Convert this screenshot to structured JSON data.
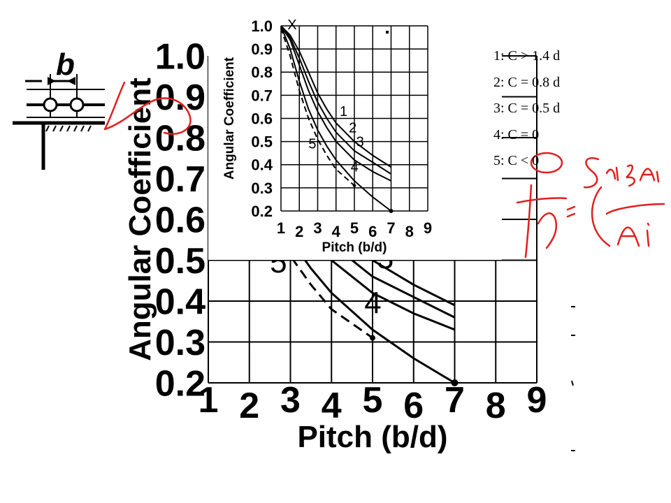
{
  "figure_label": "b",
  "chart_data": [
    {
      "type": "line",
      "title": "",
      "xlabel": "Pitch (b/d)",
      "ylabel": "Angular Coefficient",
      "x_ticks": [
        1,
        2,
        3,
        4,
        5,
        6,
        7,
        8,
        9
      ],
      "y_ticks": [
        0.2,
        0.3,
        0.4,
        0.5,
        0.6,
        0.7,
        0.8,
        0.9,
        1.0
      ],
      "xlim": [
        1,
        9
      ],
      "ylim": [
        0.2,
        1.0
      ],
      "grid": true,
      "series": [
        {
          "name": "1",
          "x": [
            1,
            1.5,
            2,
            2.5,
            3,
            3.5,
            4,
            5,
            6,
            7
          ],
          "y": [
            1.0,
            0.96,
            0.89,
            0.8,
            0.71,
            0.64,
            0.58,
            0.5,
            0.44,
            0.39
          ]
        },
        {
          "name": "2",
          "x": [
            1,
            1.5,
            2,
            2.5,
            3,
            3.5,
            4,
            5,
            6,
            7
          ],
          "y": [
            1.0,
            0.95,
            0.86,
            0.76,
            0.67,
            0.6,
            0.54,
            0.46,
            0.41,
            0.36
          ]
        },
        {
          "name": "3",
          "x": [
            1,
            1.5,
            2,
            2.5,
            3,
            3.5,
            4,
            5,
            6,
            7
          ],
          "y": [
            1.0,
            0.94,
            0.83,
            0.72,
            0.63,
            0.56,
            0.5,
            0.42,
            0.37,
            0.33
          ]
        },
        {
          "name": "4",
          "x": [
            1,
            1.5,
            2,
            2.5,
            3,
            3.5,
            4,
            5,
            6,
            7
          ],
          "y": [
            1.0,
            0.9,
            0.76,
            0.64,
            0.55,
            0.48,
            0.42,
            0.33,
            0.26,
            0.2
          ]
        },
        {
          "name": "5",
          "x": [
            1,
            1.5,
            2,
            2.5,
            3,
            3.5,
            4,
            5
          ],
          "y": [
            0.99,
            0.87,
            0.72,
            0.6,
            0.51,
            0.44,
            0.38,
            0.31
          ],
          "dashed": true
        }
      ],
      "curve_labels": [
        "1",
        "2",
        "3",
        "4",
        "5"
      ],
      "special_mark": "X",
      "legend": [
        "1: C > 1.4 d",
        "2: C = 0.8 d",
        "3: C = 0.5 d",
        "4: C = 0",
        "5: C < 0"
      ],
      "legend_position": "right"
    }
  ],
  "handwriting": "Fy = Σ xi ξi Ai / Ai",
  "colors": {
    "ink": "#000000",
    "annotation": "#e0201f",
    "grid": "#000000",
    "background": "#ffffff"
  }
}
